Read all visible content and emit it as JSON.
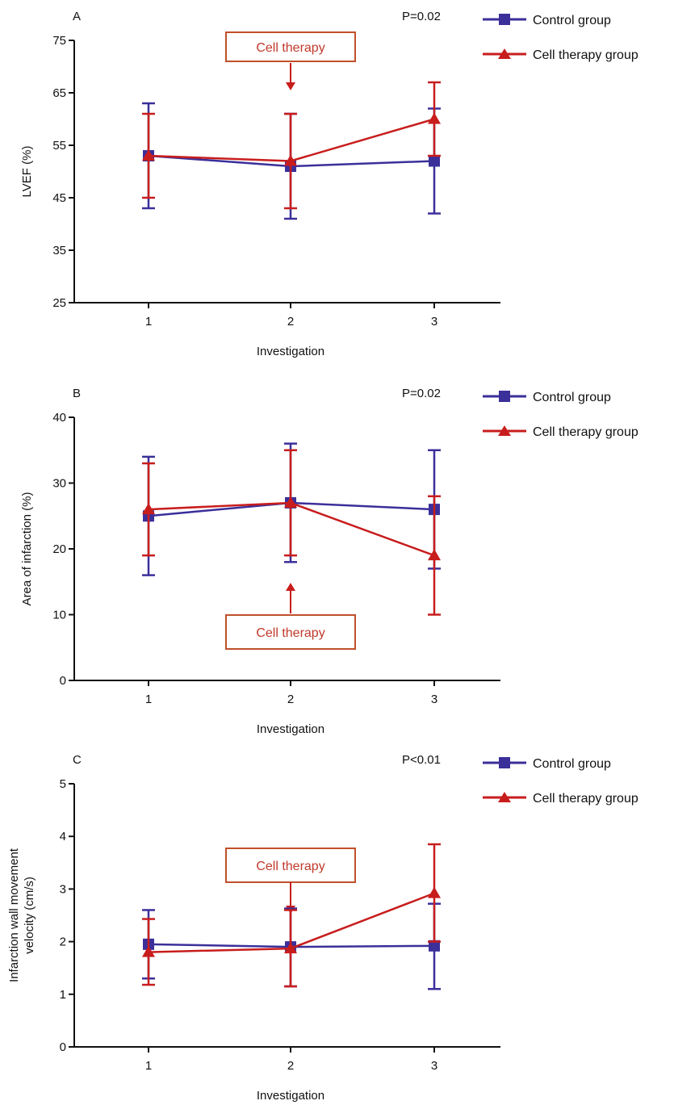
{
  "colors": {
    "control": "#3b2f9a",
    "cell": "#c81d1d",
    "callout_border": "#c0502a",
    "callout_text": "#c0392b",
    "axis": "#111111"
  },
  "chart_data": [
    {
      "type": "line",
      "panel_label": "A",
      "title": "",
      "xlabel": "Investigation",
      "ylabel": "LVEF (%)",
      "x": [
        1,
        2,
        3
      ],
      "xlim": [
        0.5,
        3.5
      ],
      "ylim": [
        25,
        75
      ],
      "yticks": [
        25,
        35,
        45,
        55,
        65,
        75
      ],
      "pvalue": "P=0.02",
      "annotation": {
        "text": "Cell therapy",
        "x": 2,
        "arrow": "down"
      },
      "legend": {
        "placement": "right",
        "entries": [
          "Control group",
          "Cell therapy group"
        ]
      },
      "series": [
        {
          "name": "Control group",
          "marker": "square",
          "values": [
            53,
            51,
            52
          ],
          "err_low": [
            43,
            41,
            42
          ],
          "err_high": [
            63,
            61,
            62
          ]
        },
        {
          "name": "Cell therapy group",
          "marker": "triangle",
          "values": [
            53,
            52,
            60
          ],
          "err_low": [
            45,
            43,
            53
          ],
          "err_high": [
            61,
            61,
            67
          ]
        }
      ]
    },
    {
      "type": "line",
      "panel_label": "B",
      "title": "",
      "xlabel": "Investigation",
      "ylabel": "Area of infarction (%)",
      "x": [
        1,
        2,
        3
      ],
      "xlim": [
        0.5,
        3.5
      ],
      "ylim": [
        0,
        40
      ],
      "yticks": [
        0,
        10,
        20,
        30,
        40
      ],
      "pvalue": "P=0.02",
      "annotation": {
        "text": "Cell therapy",
        "x": 2,
        "arrow": "up"
      },
      "legend": {
        "placement": "right",
        "entries": [
          "Control group",
          "Cell therapy group"
        ]
      },
      "series": [
        {
          "name": "Control group",
          "marker": "square",
          "values": [
            25,
            27,
            26
          ],
          "err_low": [
            16,
            18,
            17
          ],
          "err_high": [
            34,
            36,
            35
          ]
        },
        {
          "name": "Cell therapy group",
          "marker": "triangle",
          "values": [
            26,
            27,
            19
          ],
          "err_low": [
            19,
            19,
            10
          ],
          "err_high": [
            33,
            35,
            28
          ]
        }
      ]
    },
    {
      "type": "line",
      "panel_label": "C",
      "title": "",
      "xlabel": "Investigation",
      "ylabel": "Infarction wall movement velocity (cm/s)",
      "ylabel_lines": [
        "Infarction wall movement",
        "velocity (cm/s)"
      ],
      "x": [
        1,
        2,
        3
      ],
      "xlim": [
        0.5,
        3.5
      ],
      "ylim": [
        0,
        5
      ],
      "yticks": [
        0,
        1,
        2,
        3,
        4,
        5
      ],
      "pvalue": "P<0.01",
      "annotation": {
        "text": "Cell therapy",
        "x": 2,
        "arrow": "down"
      },
      "legend": {
        "placement": "right",
        "entries": [
          "Control group",
          "Cell therapy group"
        ]
      },
      "series": [
        {
          "name": "Control group",
          "marker": "square",
          "values": [
            1.95,
            1.9,
            1.92
          ],
          "err_low": [
            1.3,
            1.15,
            1.1
          ],
          "err_high": [
            2.6,
            2.63,
            2.72
          ]
        },
        {
          "name": "Cell therapy group",
          "marker": "triangle",
          "values": [
            1.8,
            1.87,
            2.92
          ],
          "err_low": [
            1.18,
            1.15,
            2.0
          ],
          "err_high": [
            2.43,
            2.6,
            3.85
          ]
        }
      ]
    }
  ]
}
